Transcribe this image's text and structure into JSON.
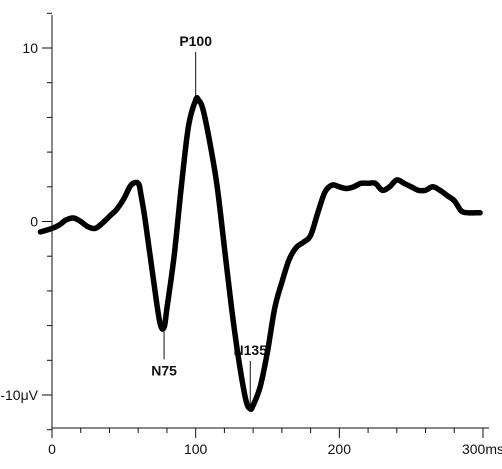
{
  "chart_data": {
    "type": "line",
    "title": "",
    "xlabel": "",
    "ylabel": "",
    "xlim": [
      0,
      300
    ],
    "ylim": [
      -12,
      12
    ],
    "x_ticks": [
      0,
      100,
      200,
      300
    ],
    "x_tick_labels": [
      "0",
      "100",
      "200",
      "300ms"
    ],
    "y_ticks": [
      10,
      0,
      -10
    ],
    "y_tick_labels": [
      "10",
      "0",
      "-10μV"
    ],
    "grid": false,
    "series": [
      {
        "x": [
          -8,
          0,
          5,
          10,
          15,
          20,
          25,
          30,
          35,
          40,
          45,
          50,
          55,
          60,
          62,
          65,
          70,
          75,
          78,
          80,
          85,
          90,
          95,
          100,
          102,
          105,
          110,
          115,
          120,
          125,
          130,
          135,
          138,
          140,
          145,
          150,
          155,
          160,
          165,
          170,
          175,
          180,
          185,
          190,
          195,
          200,
          205,
          210,
          215,
          220,
          225,
          230,
          235,
          240,
          245,
          250,
          255,
          260,
          265,
          270,
          275,
          280,
          285,
          290,
          295,
          298
        ],
        "y": [
          -0.6,
          -0.4,
          -0.2,
          0.1,
          0.2,
          0.0,
          -0.3,
          -0.4,
          -0.1,
          0.3,
          0.7,
          1.3,
          2.1,
          2.2,
          1.5,
          0.0,
          -3.0,
          -5.8,
          -6.1,
          -5.0,
          -2.0,
          2.0,
          5.5,
          7.0,
          7.0,
          6.5,
          4.5,
          2.0,
          -1.5,
          -5.0,
          -8.0,
          -10.3,
          -10.8,
          -10.6,
          -9.5,
          -7.5,
          -5.0,
          -3.5,
          -2.2,
          -1.5,
          -1.2,
          -0.8,
          0.5,
          1.7,
          2.1,
          2.0,
          1.9,
          2.0,
          2.2,
          2.2,
          2.2,
          1.8,
          2.0,
          2.4,
          2.2,
          2.0,
          1.8,
          1.8,
          2.0,
          1.8,
          1.5,
          1.2,
          0.6,
          0.5,
          0.5,
          0.5
        ]
      }
    ],
    "annotations": [
      {
        "text": "P100",
        "x": 100,
        "y": 7.0,
        "position": "above"
      },
      {
        "text": "N75",
        "x": 78,
        "y": -6.1,
        "position": "below"
      },
      {
        "text": "N135",
        "x": 138,
        "y": -10.8,
        "position": "above"
      }
    ]
  }
}
